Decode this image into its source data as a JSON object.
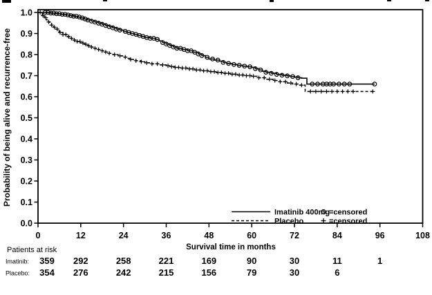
{
  "page": {
    "background": "#ffffff",
    "ink": "#000000"
  },
  "chart_data": {
    "type": "line",
    "subtype": "kaplan-meier-step",
    "title": "",
    "xlabel": "Survival time in months",
    "ylabel": "Probability of being alive and recurrence-free",
    "xlim": [
      0,
      108
    ],
    "ylim": [
      0.0,
      1.0
    ],
    "xticks": [
      0,
      12,
      24,
      36,
      48,
      60,
      72,
      84,
      96,
      108
    ],
    "yticks": [
      0.0,
      0.1,
      0.2,
      0.3,
      0.4,
      0.5,
      0.6,
      0.7,
      0.8,
      0.9,
      1.0
    ],
    "grid": false,
    "legend_position": "bottom-inside",
    "series": [
      {
        "name": "Imatinib 400mg",
        "line": "solid",
        "marker": "circle",
        "marker_meaning": "censored",
        "steps": [
          [
            0,
            1.0
          ],
          [
            3,
            1.0
          ],
          [
            3.5,
            0.997
          ],
          [
            5,
            0.994
          ],
          [
            6.5,
            0.991
          ],
          [
            8,
            0.988
          ],
          [
            9,
            0.985
          ],
          [
            10,
            0.982
          ],
          [
            11,
            0.978
          ],
          [
            12,
            0.974
          ],
          [
            13,
            0.969
          ],
          [
            14,
            0.964
          ],
          [
            15,
            0.959
          ],
          [
            16,
            0.954
          ],
          [
            17,
            0.949
          ],
          [
            18,
            0.944
          ],
          [
            19,
            0.938
          ],
          [
            20,
            0.932
          ],
          [
            21,
            0.927
          ],
          [
            22,
            0.921
          ],
          [
            23,
            0.916
          ],
          [
            24,
            0.91
          ],
          [
            25,
            0.905
          ],
          [
            26,
            0.9
          ],
          [
            27,
            0.896
          ],
          [
            28,
            0.891
          ],
          [
            29,
            0.886
          ],
          [
            30,
            0.881
          ],
          [
            31.5,
            0.877
          ],
          [
            33,
            0.872
          ],
          [
            34,
            0.865
          ],
          [
            35,
            0.857
          ],
          [
            36,
            0.85
          ],
          [
            37,
            0.843
          ],
          [
            38,
            0.836
          ],
          [
            39,
            0.83
          ],
          [
            40.5,
            0.824
          ],
          [
            42,
            0.818
          ],
          [
            43.5,
            0.811
          ],
          [
            45,
            0.803
          ],
          [
            46,
            0.795
          ],
          [
            47,
            0.787
          ],
          [
            48,
            0.779
          ],
          [
            49.5,
            0.774
          ],
          [
            51,
            0.769
          ],
          [
            52,
            0.763
          ],
          [
            53,
            0.758
          ],
          [
            54.5,
            0.753
          ],
          [
            56,
            0.749
          ],
          [
            57.5,
            0.745
          ],
          [
            59,
            0.742
          ],
          [
            60,
            0.739
          ],
          [
            61,
            0.733
          ],
          [
            62,
            0.727
          ],
          [
            63,
            0.721
          ],
          [
            64,
            0.716
          ],
          [
            65.5,
            0.711
          ],
          [
            67,
            0.706
          ],
          [
            68.5,
            0.702
          ],
          [
            70,
            0.699
          ],
          [
            71,
            0.696
          ],
          [
            72,
            0.693
          ],
          [
            73,
            0.69
          ],
          [
            74,
            0.688
          ],
          [
            75.5,
            0.66
          ],
          [
            94.5,
            0.66
          ]
        ],
        "censor_times": [
          2,
          2.8,
          3.6,
          4.4,
          5.2,
          6,
          6.8,
          7.6,
          8.4,
          9.2,
          10,
          10.8,
          11.6,
          12.4,
          13.2,
          14,
          15,
          16,
          17,
          18,
          19,
          20,
          21,
          22,
          23,
          24.5,
          25.5,
          26.5,
          27.5,
          28.5,
          29.5,
          30.5,
          31.5,
          32.5,
          33.5,
          35,
          36,
          37,
          38,
          39,
          40,
          41,
          42,
          43,
          44,
          45,
          46,
          47.5,
          49,
          50.5,
          52,
          53.5,
          55,
          56.5,
          58,
          59.5,
          61,
          62.5,
          64,
          65.5,
          67,
          68.5,
          70,
          71.5,
          73,
          77,
          78.5,
          80,
          81,
          82,
          83,
          84.5,
          86,
          87.5,
          94.5
        ]
      },
      {
        "name": "Placebo",
        "line": "dashed",
        "marker": "plus",
        "marker_meaning": "censored",
        "steps": [
          [
            0,
            1.0
          ],
          [
            0.8,
            0.995
          ],
          [
            1.2,
            0.985
          ],
          [
            1.8,
            0.975
          ],
          [
            2.3,
            0.965
          ],
          [
            2.8,
            0.955
          ],
          [
            3.3,
            0.948
          ],
          [
            3.8,
            0.94
          ],
          [
            4.3,
            0.93
          ],
          [
            5,
            0.921
          ],
          [
            5.5,
            0.913
          ],
          [
            6,
            0.905
          ],
          [
            7,
            0.895
          ],
          [
            8,
            0.885
          ],
          [
            9,
            0.877
          ],
          [
            10,
            0.869
          ],
          [
            11,
            0.862
          ],
          [
            12,
            0.855
          ],
          [
            13,
            0.849
          ],
          [
            14,
            0.842
          ],
          [
            15,
            0.836
          ],
          [
            16,
            0.83
          ],
          [
            17,
            0.824
          ],
          [
            18,
            0.818
          ],
          [
            19,
            0.812
          ],
          [
            20,
            0.806
          ],
          [
            21,
            0.8
          ],
          [
            22.5,
            0.794
          ],
          [
            24,
            0.788
          ],
          [
            25,
            0.782
          ],
          [
            26,
            0.777
          ],
          [
            27.5,
            0.771
          ],
          [
            29,
            0.766
          ],
          [
            30,
            0.761
          ],
          [
            32,
            0.756
          ],
          [
            34,
            0.751
          ],
          [
            36,
            0.747
          ],
          [
            37,
            0.743
          ],
          [
            38.5,
            0.739
          ],
          [
            40,
            0.736
          ],
          [
            42,
            0.732
          ],
          [
            44,
            0.727
          ],
          [
            46,
            0.723
          ],
          [
            48,
            0.719
          ],
          [
            50,
            0.715
          ],
          [
            52,
            0.711
          ],
          [
            54,
            0.707
          ],
          [
            56,
            0.703
          ],
          [
            58,
            0.7
          ],
          [
            60,
            0.697
          ],
          [
            62,
            0.69
          ],
          [
            64,
            0.683
          ],
          [
            66,
            0.677
          ],
          [
            68,
            0.671
          ],
          [
            70,
            0.665
          ],
          [
            71.5,
            0.66
          ],
          [
            73,
            0.655
          ],
          [
            75,
            0.625
          ],
          [
            94.5,
            0.625
          ]
        ],
        "censor_times": [
          0.6,
          1.4,
          2.2,
          3,
          3.8,
          4.6,
          5.4,
          6.2,
          7,
          7.8,
          8.6,
          9.4,
          10.2,
          11,
          11.8,
          12.6,
          13.4,
          14.2,
          15,
          16,
          17,
          18,
          19,
          20,
          21.5,
          23,
          24.5,
          26,
          27.5,
          29,
          30.5,
          32,
          33.5,
          35,
          36.5,
          37.5,
          38.5,
          39.5,
          40.5,
          41.5,
          42.5,
          43.5,
          44.5,
          45.5,
          46.5,
          47.5,
          48.5,
          49.5,
          50.5,
          51.5,
          52.5,
          53.5,
          54.5,
          55.5,
          56.5,
          57.5,
          58.5,
          59.5,
          60.5,
          62,
          63.5,
          65,
          66.5,
          68,
          69.5,
          71,
          72.5,
          74,
          76.5,
          78,
          79.5,
          81,
          82.5,
          84,
          85.5,
          87,
          88.5,
          94
        ]
      }
    ],
    "legend": {
      "entries": [
        {
          "label": "Imatinib 400mg",
          "line": "solid"
        },
        {
          "label": "Placebo",
          "line": "dashed"
        }
      ],
      "censored": [
        {
          "symbol": "circle",
          "label": "=censored"
        },
        {
          "symbol": "plus",
          "label": "=censored"
        }
      ]
    }
  },
  "risk_table": {
    "heading": "Patients at risk",
    "rows": [
      {
        "label": "Imatinib:",
        "counts": [
          "359",
          "292",
          "258",
          "221",
          "169",
          "90",
          "30",
          "11",
          "1"
        ]
      },
      {
        "label": "Placebo:",
        "counts": [
          "354",
          "276",
          "242",
          "215",
          "156",
          "79",
          "30",
          "6"
        ]
      }
    ]
  }
}
